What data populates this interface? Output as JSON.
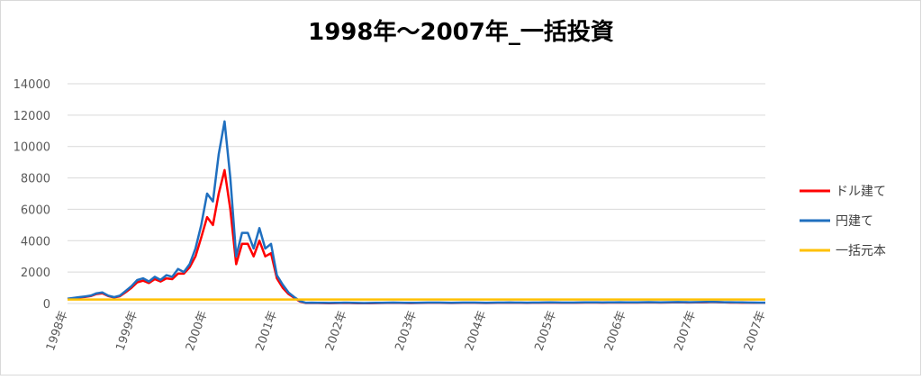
{
  "chart_data": {
    "type": "line",
    "title": "1998年～2007年_一括投資",
    "categories": [
      "1998年",
      null,
      null,
      null,
      null,
      null,
      null,
      null,
      null,
      null,
      null,
      null,
      "1999年",
      null,
      null,
      null,
      null,
      null,
      null,
      null,
      null,
      null,
      null,
      null,
      "2000年",
      null,
      null,
      null,
      null,
      null,
      null,
      null,
      null,
      null,
      null,
      null,
      "2001年",
      null,
      null,
      null,
      null,
      null,
      null,
      null,
      null,
      null,
      null,
      null,
      "2002年",
      null,
      null,
      null,
      null,
      null,
      null,
      null,
      null,
      null,
      null,
      null,
      "2003年",
      null,
      null,
      null,
      null,
      null,
      null,
      null,
      null,
      null,
      null,
      null,
      "2004年",
      null,
      null,
      null,
      null,
      null,
      null,
      null,
      null,
      null,
      null,
      null,
      "2005年",
      null,
      null,
      null,
      null,
      null,
      null,
      null,
      null,
      null,
      null,
      null,
      "2006年",
      null,
      null,
      null,
      null,
      null,
      null,
      null,
      null,
      null,
      null,
      null,
      "2007年",
      null,
      null,
      null,
      null,
      null,
      null,
      null,
      null,
      null,
      null,
      null,
      "2007年"
    ],
    "series": [
      {
        "name": "ドル建て",
        "color": "#ff0000",
        "values": [
          280,
          330,
          380,
          420,
          470,
          600,
          650,
          470,
          380,
          460,
          720,
          1000,
          1350,
          1450,
          1300,
          1550,
          1400,
          1600,
          1550,
          1900,
          1900,
          2300,
          3000,
          4200,
          5500,
          5000,
          7000,
          8500,
          6000,
          2500,
          3800,
          3800,
          3000,
          4000,
          3000,
          3200,
          1600,
          1000,
          600,
          350,
          120,
          30,
          35,
          30,
          25,
          20,
          25,
          30,
          35,
          25,
          20,
          15,
          20,
          25,
          30,
          35,
          40,
          35,
          30,
          25,
          30,
          35,
          40,
          45,
          40,
          35,
          30,
          35,
          40,
          45,
          40,
          35,
          30,
          35,
          40,
          45,
          50,
          45,
          40,
          35,
          40,
          45,
          50,
          55,
          50,
          45,
          40,
          45,
          50,
          55,
          60,
          55,
          50,
          55,
          60,
          65,
          60,
          55,
          60,
          65,
          70,
          65,
          60,
          65,
          70,
          75,
          70,
          65,
          70,
          75,
          80,
          90,
          80,
          70,
          60,
          60,
          50,
          50,
          40,
          40,
          40
        ]
      },
      {
        "name": "円建て",
        "color": "#1f6fbf",
        "values": [
          300,
          350,
          400,
          450,
          500,
          650,
          700,
          500,
          400,
          500,
          800,
          1100,
          1500,
          1600,
          1400,
          1700,
          1500,
          1800,
          1700,
          2200,
          2000,
          2500,
          3500,
          5000,
          7000,
          6500,
          9500,
          11600,
          8000,
          3000,
          4500,
          4500,
          3500,
          4800,
          3500,
          3800,
          1800,
          1200,
          700,
          400,
          150,
          40,
          50,
          45,
          40,
          35,
          40,
          45,
          50,
          40,
          35,
          30,
          35,
          40,
          45,
          50,
          55,
          50,
          45,
          40,
          45,
          50,
          55,
          60,
          55,
          50,
          45,
          50,
          55,
          60,
          55,
          50,
          45,
          50,
          55,
          60,
          65,
          60,
          55,
          50,
          55,
          60,
          65,
          70,
          65,
          60,
          55,
          60,
          65,
          70,
          75,
          70,
          65,
          70,
          75,
          80,
          75,
          70,
          75,
          80,
          85,
          80,
          75,
          80,
          85,
          90,
          85,
          80,
          85,
          90,
          95,
          100,
          90,
          80,
          80,
          70,
          70,
          60,
          60,
          50,
          50
        ]
      },
      {
        "name": "一括元本",
        "color": "#ffc000",
        "values": [
          250,
          250,
          250,
          250,
          250,
          250,
          250,
          250,
          250,
          250,
          250,
          250,
          250,
          250,
          250,
          250,
          250,
          250,
          250,
          250,
          250,
          250,
          250,
          250,
          250,
          250,
          250,
          250,
          250,
          250,
          250,
          250,
          250,
          250,
          250,
          250,
          250,
          250,
          250,
          250,
          250,
          250,
          250,
          250,
          250,
          250,
          250,
          250,
          250,
          250,
          250,
          250,
          250,
          250,
          250,
          250,
          250,
          250,
          250,
          250,
          250,
          250,
          250,
          250,
          250,
          250,
          250,
          250,
          250,
          250,
          250,
          250,
          250,
          250,
          250,
          250,
          250,
          250,
          250,
          250,
          250,
          250,
          250,
          250,
          250,
          250,
          250,
          250,
          250,
          250,
          250,
          250,
          250,
          250,
          250,
          250,
          250,
          250,
          250,
          250,
          250,
          250,
          250,
          250,
          250,
          250,
          250,
          250,
          250,
          250,
          250,
          250,
          250,
          250,
          250,
          250,
          250,
          250,
          250,
          250,
          250
        ]
      }
    ],
    "ylim": [
      0,
      14000
    ],
    "yticks": [
      0,
      2000,
      4000,
      6000,
      8000,
      10000,
      12000,
      14000
    ],
    "grid": true,
    "legend": "right"
  }
}
